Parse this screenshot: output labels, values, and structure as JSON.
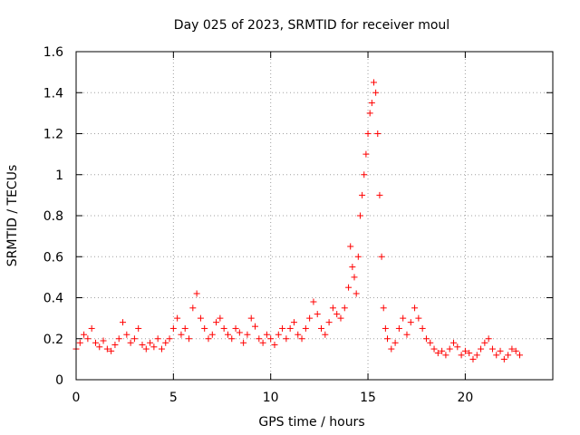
{
  "chart_data": {
    "type": "scatter",
    "title": "Day 025 of 2023, SRMTID for receiver moul",
    "xlabel": "GPS time / hours",
    "ylabel": "SRMTID / TECUs",
    "xlim": [
      0,
      24.5
    ],
    "ylim": [
      0,
      1.6
    ],
    "xticks": [
      0,
      5,
      10,
      15,
      20
    ],
    "xtick_labels": [
      "0",
      "5",
      "10",
      "15",
      "20"
    ],
    "yticks": [
      0,
      0.2,
      0.4,
      0.6,
      0.8,
      1,
      1.2,
      1.4,
      1.6
    ],
    "ytick_labels": [
      "0",
      "0.2",
      "0.4",
      "0.6",
      "0.8",
      "1",
      "1.2",
      "1.4",
      "1.6"
    ],
    "grid": true,
    "marker": "+",
    "color": "#ff0000",
    "series": [
      {
        "name": "SRMTID",
        "x": [
          0.0,
          0.2,
          0.4,
          0.6,
          0.8,
          1.0,
          1.2,
          1.4,
          1.6,
          1.8,
          2.0,
          2.2,
          2.4,
          2.6,
          2.8,
          3.0,
          3.2,
          3.4,
          3.6,
          3.8,
          4.0,
          4.2,
          4.4,
          4.6,
          4.8,
          5.0,
          5.2,
          5.4,
          5.6,
          5.8,
          6.0,
          6.2,
          6.4,
          6.6,
          6.8,
          7.0,
          7.2,
          7.4,
          7.6,
          7.8,
          8.0,
          8.2,
          8.4,
          8.6,
          8.8,
          9.0,
          9.2,
          9.4,
          9.6,
          9.8,
          10.0,
          10.2,
          10.4,
          10.6,
          10.8,
          11.0,
          11.2,
          11.4,
          11.6,
          11.8,
          12.0,
          12.2,
          12.4,
          12.6,
          12.8,
          13.0,
          13.2,
          13.4,
          13.6,
          13.8,
          14.0,
          14.1,
          14.2,
          14.3,
          14.4,
          14.5,
          14.6,
          14.7,
          14.8,
          14.9,
          15.0,
          15.1,
          15.2,
          15.3,
          15.4,
          15.5,
          15.6,
          15.7,
          15.8,
          15.9,
          16.0,
          16.2,
          16.4,
          16.6,
          16.8,
          17.0,
          17.2,
          17.4,
          17.6,
          17.8,
          18.0,
          18.2,
          18.4,
          18.6,
          18.8,
          19.0,
          19.2,
          19.4,
          19.6,
          19.8,
          20.0,
          20.2,
          20.4,
          20.6,
          20.8,
          21.0,
          21.2,
          21.4,
          21.6,
          21.8,
          22.0,
          22.2,
          22.4,
          22.6,
          22.8
        ],
        "y": [
          0.15,
          0.18,
          0.22,
          0.2,
          0.25,
          0.18,
          0.16,
          0.19,
          0.15,
          0.14,
          0.17,
          0.2,
          0.28,
          0.22,
          0.18,
          0.2,
          0.25,
          0.17,
          0.15,
          0.18,
          0.16,
          0.2,
          0.15,
          0.18,
          0.2,
          0.25,
          0.3,
          0.22,
          0.25,
          0.2,
          0.35,
          0.42,
          0.3,
          0.25,
          0.2,
          0.22,
          0.28,
          0.3,
          0.25,
          0.22,
          0.2,
          0.25,
          0.23,
          0.18,
          0.22,
          0.3,
          0.26,
          0.2,
          0.18,
          0.22,
          0.2,
          0.17,
          0.22,
          0.25,
          0.2,
          0.25,
          0.28,
          0.22,
          0.2,
          0.25,
          0.3,
          0.38,
          0.32,
          0.25,
          0.22,
          0.28,
          0.35,
          0.32,
          0.3,
          0.35,
          0.45,
          0.65,
          0.55,
          0.5,
          0.42,
          0.6,
          0.8,
          0.9,
          1.0,
          1.1,
          1.2,
          1.3,
          1.35,
          1.45,
          1.4,
          1.2,
          0.9,
          0.6,
          0.35,
          0.25,
          0.2,
          0.15,
          0.18,
          0.25,
          0.3,
          0.22,
          0.28,
          0.35,
          0.3,
          0.25,
          0.2,
          0.18,
          0.15,
          0.13,
          0.14,
          0.12,
          0.15,
          0.18,
          0.16,
          0.12,
          0.14,
          0.13,
          0.1,
          0.12,
          0.15,
          0.18,
          0.2,
          0.15,
          0.12,
          0.14,
          0.1,
          0.12,
          0.15,
          0.14,
          0.12
        ]
      }
    ]
  }
}
